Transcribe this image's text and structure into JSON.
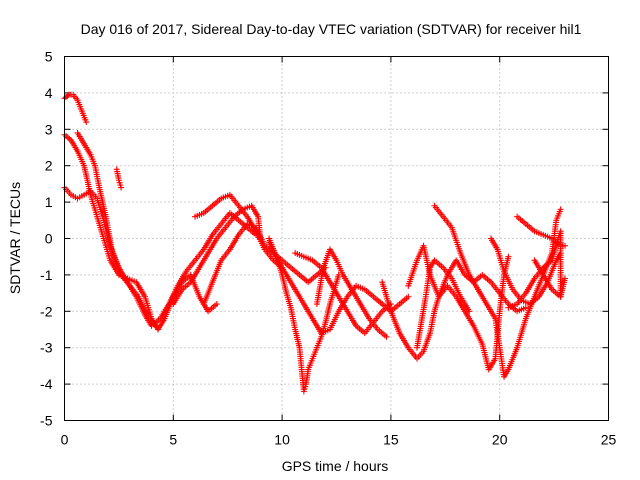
{
  "chart_data": {
    "type": "scatter",
    "title": "Day 016 of 2017, Sidereal Day-to-day VTEC variation (SDTVAR) for receiver hil1",
    "xlabel": "GPS time / hours",
    "ylabel": "SDTVAR / TECUs",
    "xlim": [
      0,
      25
    ],
    "ylim": [
      -5,
      5
    ],
    "xticks": [
      0,
      5,
      10,
      15,
      20,
      25
    ],
    "yticks": [
      -5,
      -4,
      -3,
      -2,
      -1,
      0,
      1,
      2,
      3,
      4,
      5
    ],
    "grid": true,
    "marker": "+",
    "color": "#ff0000",
    "series": [
      {
        "name": "trace-1",
        "points": [
          [
            0.0,
            3.85
          ],
          [
            0.2,
            3.95
          ],
          [
            0.4,
            3.95
          ],
          [
            0.6,
            3.8
          ],
          [
            0.8,
            3.5
          ],
          [
            1.0,
            3.2
          ]
        ]
      },
      {
        "name": "trace-2",
        "points": [
          [
            0.0,
            2.85
          ],
          [
            0.3,
            2.7
          ],
          [
            0.6,
            2.4
          ],
          [
            0.9,
            2.0
          ],
          [
            1.2,
            1.2
          ],
          [
            1.5,
            0.6
          ],
          [
            1.8,
            0.0
          ],
          [
            2.1,
            -0.6
          ],
          [
            2.5,
            -1.0
          ],
          [
            2.9,
            -1.1
          ],
          [
            3.3,
            -1.2
          ],
          [
            3.7,
            -1.6
          ],
          [
            4.0,
            -2.2
          ],
          [
            4.3,
            -2.5
          ],
          [
            4.6,
            -2.2
          ],
          [
            5.0,
            -1.6
          ],
          [
            5.4,
            -1.2
          ],
          [
            5.8,
            -1.0
          ],
          [
            6.2,
            -1.6
          ],
          [
            6.6,
            -2.0
          ],
          [
            7.0,
            -1.8
          ]
        ]
      },
      {
        "name": "trace-3",
        "points": [
          [
            0.0,
            1.4
          ],
          [
            0.3,
            1.2
          ],
          [
            0.6,
            1.1
          ],
          [
            0.9,
            1.2
          ],
          [
            1.2,
            1.3
          ],
          [
            1.5,
            1.1
          ],
          [
            1.8,
            0.5
          ],
          [
            2.1,
            -0.2
          ],
          [
            2.5,
            -0.8
          ],
          [
            2.9,
            -1.2
          ],
          [
            3.3,
            -1.6
          ],
          [
            3.7,
            -2.1
          ],
          [
            4.0,
            -2.4
          ],
          [
            4.4,
            -2.2
          ],
          [
            4.8,
            -1.8
          ],
          [
            5.2,
            -1.3
          ],
          [
            5.6,
            -0.9
          ],
          [
            6.0,
            -0.6
          ],
          [
            6.4,
            -0.3
          ],
          [
            6.8,
            0.1
          ],
          [
            7.2,
            0.4
          ],
          [
            7.6,
            0.7
          ],
          [
            8.0,
            0.5
          ],
          [
            8.4,
            0.3
          ],
          [
            8.8,
            0.1
          ]
        ]
      },
      {
        "name": "trace-4",
        "points": [
          [
            0.6,
            2.9
          ],
          [
            0.9,
            2.6
          ],
          [
            1.2,
            2.3
          ],
          [
            1.4,
            2.0
          ],
          [
            1.6,
            1.4
          ],
          [
            1.9,
            0.6
          ],
          [
            2.2,
            -0.4
          ],
          [
            2.6,
            -1.0
          ],
          [
            3.0,
            -1.3
          ],
          [
            3.4,
            -1.6
          ],
          [
            3.8,
            -2.1
          ],
          [
            4.2,
            -2.4
          ]
        ]
      },
      {
        "name": "trace-5",
        "points": [
          [
            2.4,
            1.9
          ],
          [
            2.5,
            1.6
          ],
          [
            2.6,
            1.4
          ]
        ]
      },
      {
        "name": "trace-6",
        "points": [
          [
            5.0,
            -1.8
          ],
          [
            5.4,
            -1.4
          ],
          [
            5.8,
            -1.2
          ],
          [
            6.2,
            -0.8
          ],
          [
            6.6,
            -0.4
          ],
          [
            7.0,
            0.0
          ],
          [
            7.4,
            0.3
          ],
          [
            7.8,
            0.6
          ],
          [
            8.2,
            0.8
          ],
          [
            8.6,
            0.9
          ],
          [
            8.9,
            0.6
          ],
          [
            9.0,
            0.0
          ]
        ]
      },
      {
        "name": "trace-7",
        "points": [
          [
            6.4,
            -1.8
          ],
          [
            6.8,
            -1.2
          ],
          [
            7.2,
            -0.6
          ],
          [
            7.6,
            -0.3
          ],
          [
            8.0,
            0.1
          ],
          [
            8.4,
            0.4
          ],
          [
            8.8,
            0.3
          ],
          [
            9.2,
            -0.2
          ],
          [
            9.6,
            -0.4
          ],
          [
            10.0,
            -0.6
          ],
          [
            10.4,
            -0.8
          ],
          [
            10.8,
            -1.0
          ],
          [
            11.2,
            -1.2
          ],
          [
            11.6,
            -1.0
          ],
          [
            12.0,
            -0.8
          ]
        ]
      },
      {
        "name": "trace-8",
        "points": [
          [
            6.0,
            0.6
          ],
          [
            6.4,
            0.7
          ],
          [
            6.8,
            0.9
          ],
          [
            7.2,
            1.1
          ],
          [
            7.6,
            1.2
          ],
          [
            8.0,
            0.9
          ],
          [
            8.4,
            0.6
          ],
          [
            8.8,
            0.2
          ],
          [
            9.2,
            -0.3
          ],
          [
            9.6,
            -0.6
          ],
          [
            10.0,
            -0.8
          ]
        ]
      },
      {
        "name": "trace-9",
        "points": [
          [
            9.4,
            -0.1
          ],
          [
            9.8,
            -0.6
          ],
          [
            10.2,
            -1.0
          ],
          [
            10.6,
            -1.4
          ],
          [
            11.0,
            -1.8
          ],
          [
            11.4,
            -2.2
          ],
          [
            11.8,
            -2.6
          ],
          [
            12.2,
            -2.5
          ],
          [
            12.6,
            -2.0
          ],
          [
            13.0,
            -1.6
          ],
          [
            13.4,
            -1.3
          ],
          [
            13.8,
            -1.4
          ],
          [
            14.2,
            -1.6
          ],
          [
            14.6,
            -1.8
          ],
          [
            15.0,
            -2.0
          ],
          [
            15.4,
            -1.8
          ],
          [
            15.8,
            -1.6
          ]
        ]
      },
      {
        "name": "trace-10",
        "points": [
          [
            9.4,
            0.0
          ],
          [
            9.8,
            -0.6
          ],
          [
            10.0,
            -1.0
          ],
          [
            10.2,
            -1.5
          ],
          [
            10.4,
            -1.9
          ],
          [
            10.6,
            -2.5
          ],
          [
            10.8,
            -3.0
          ],
          [
            11.0,
            -4.2
          ],
          [
            11.1,
            -4.0
          ],
          [
            11.2,
            -3.6
          ],
          [
            11.4,
            -3.3
          ],
          [
            11.6,
            -3.0
          ],
          [
            11.8,
            -2.7
          ],
          [
            12.0,
            -2.3
          ],
          [
            12.2,
            -1.8
          ],
          [
            12.4,
            -1.4
          ],
          [
            12.6,
            -1.0
          ]
        ]
      },
      {
        "name": "trace-11",
        "points": [
          [
            10.6,
            -0.4
          ],
          [
            11.0,
            -0.5
          ],
          [
            11.4,
            -0.6
          ],
          [
            11.8,
            -0.8
          ],
          [
            12.2,
            -1.2
          ],
          [
            12.6,
            -1.6
          ],
          [
            13.0,
            -2.0
          ],
          [
            13.4,
            -2.4
          ],
          [
            13.8,
            -2.6
          ],
          [
            14.2,
            -2.3
          ],
          [
            14.6,
            -2.0
          ],
          [
            15.0,
            -1.8
          ]
        ]
      },
      {
        "name": "trace-12",
        "points": [
          [
            11.6,
            -1.8
          ],
          [
            11.9,
            -0.8
          ],
          [
            12.2,
            -0.3
          ],
          [
            12.5,
            -0.6
          ],
          [
            12.8,
            -1.0
          ],
          [
            13.2,
            -1.4
          ],
          [
            13.6,
            -1.8
          ],
          [
            14.0,
            -2.2
          ],
          [
            14.4,
            -2.5
          ],
          [
            14.8,
            -2.7
          ]
        ]
      },
      {
        "name": "trace-13",
        "points": [
          [
            14.6,
            -1.2
          ],
          [
            15.0,
            -2.0
          ],
          [
            15.4,
            -2.6
          ],
          [
            15.8,
            -3.0
          ],
          [
            16.2,
            -3.3
          ],
          [
            16.5,
            -3.1
          ],
          [
            16.8,
            -2.6
          ],
          [
            17.0,
            -2.0
          ],
          [
            17.2,
            -1.6
          ],
          [
            17.6,
            -1.3
          ],
          [
            18.0,
            -1.6
          ],
          [
            18.4,
            -2.0
          ],
          [
            18.8,
            -2.4
          ],
          [
            19.2,
            -2.9
          ],
          [
            19.5,
            -3.6
          ],
          [
            19.8,
            -3.3
          ],
          [
            20.0,
            -2.0
          ],
          [
            20.2,
            -1.0
          ],
          [
            20.4,
            -0.5
          ]
        ]
      },
      {
        "name": "trace-14",
        "points": [
          [
            15.8,
            -1.3
          ],
          [
            16.2,
            -0.6
          ],
          [
            16.5,
            -0.2
          ],
          [
            16.8,
            -1.0
          ],
          [
            17.2,
            -1.6
          ],
          [
            17.6,
            -1.0
          ],
          [
            18.0,
            -0.6
          ],
          [
            18.4,
            -1.0
          ],
          [
            18.8,
            -1.2
          ],
          [
            19.2,
            -1.0
          ],
          [
            19.6,
            -1.2
          ],
          [
            20.0,
            -1.5
          ],
          [
            20.4,
            -1.8
          ],
          [
            20.8,
            -2.0
          ],
          [
            21.2,
            -1.9
          ]
        ]
      },
      {
        "name": "trace-15",
        "points": [
          [
            16.2,
            -3.0
          ],
          [
            16.4,
            -2.3
          ],
          [
            16.6,
            -1.6
          ],
          [
            16.8,
            -0.8
          ],
          [
            17.0,
            -0.6
          ],
          [
            17.4,
            -0.8
          ],
          [
            17.8,
            -1.1
          ],
          [
            18.2,
            -1.6
          ],
          [
            18.6,
            -2.0
          ]
        ]
      },
      {
        "name": "trace-16",
        "points": [
          [
            17.0,
            0.9
          ],
          [
            17.4,
            0.6
          ],
          [
            17.8,
            0.3
          ],
          [
            18.2,
            -0.4
          ],
          [
            18.6,
            -1.0
          ],
          [
            19.0,
            -1.4
          ],
          [
            19.4,
            -1.8
          ],
          [
            19.8,
            -2.2
          ],
          [
            20.0,
            -3.0
          ],
          [
            20.2,
            -3.8
          ],
          [
            20.4,
            -3.6
          ],
          [
            20.8,
            -3.0
          ],
          [
            21.2,
            -2.2
          ],
          [
            21.6,
            -1.6
          ],
          [
            22.0,
            -1.0
          ],
          [
            22.4,
            -0.4
          ],
          [
            22.6,
            0.5
          ],
          [
            22.8,
            0.8
          ]
        ]
      },
      {
        "name": "trace-17",
        "points": [
          [
            19.6,
            0.0
          ],
          [
            19.9,
            -0.3
          ],
          [
            20.2,
            -0.9
          ],
          [
            20.6,
            -1.4
          ],
          [
            21.0,
            -1.7
          ],
          [
            21.4,
            -1.8
          ],
          [
            21.8,
            -1.6
          ],
          [
            22.2,
            -1.2
          ],
          [
            22.6,
            -0.6
          ],
          [
            22.8,
            -0.4
          ]
        ]
      },
      {
        "name": "trace-18",
        "points": [
          [
            20.4,
            -1.9
          ],
          [
            20.8,
            -1.8
          ],
          [
            21.2,
            -1.5
          ],
          [
            21.6,
            -1.1
          ],
          [
            22.0,
            -0.8
          ],
          [
            22.4,
            -0.6
          ],
          [
            22.8,
            0.2
          ],
          [
            22.8,
            -1.6
          ]
        ]
      },
      {
        "name": "trace-19",
        "points": [
          [
            20.8,
            0.6
          ],
          [
            21.2,
            0.4
          ],
          [
            21.6,
            0.2
          ],
          [
            22.0,
            0.1
          ],
          [
            22.4,
            0.0
          ],
          [
            22.8,
            -0.2
          ],
          [
            23.0,
            -0.2
          ]
        ]
      },
      {
        "name": "trace-20",
        "points": [
          [
            21.6,
            -0.6
          ],
          [
            22.0,
            -1.0
          ],
          [
            22.4,
            -1.4
          ],
          [
            22.8,
            -1.6
          ],
          [
            23.0,
            -1.1
          ]
        ]
      }
    ]
  }
}
